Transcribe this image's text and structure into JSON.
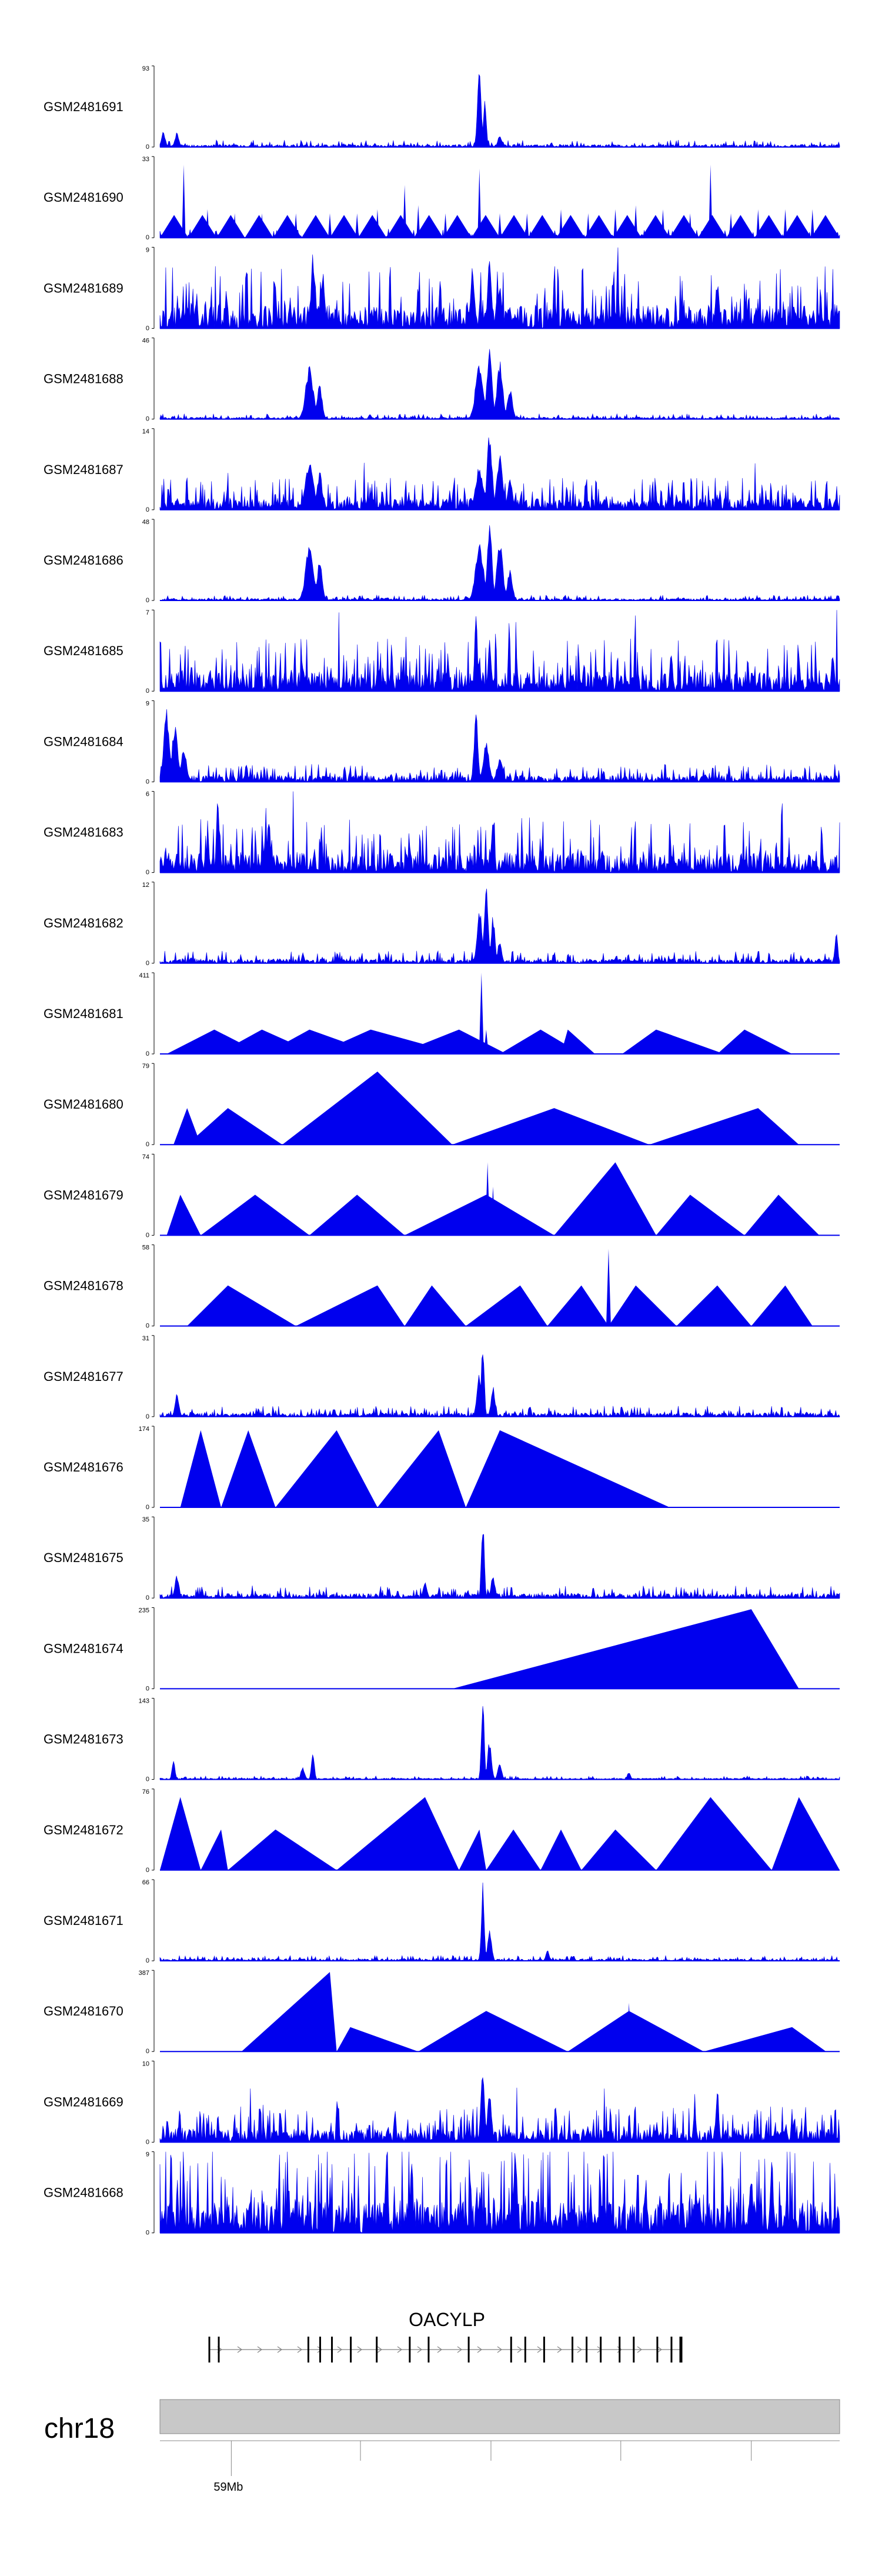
{
  "colors": {
    "signal": "#0000ee",
    "axis": "#000000",
    "ideogram_fill": "#c8c8c8",
    "ideogram_stroke": "#888888",
    "gene": "#000000",
    "intron_arrow": "#808080"
  },
  "chart_data": {
    "type": "area",
    "title": "",
    "xlabel": "",
    "ylabel": "",
    "chromosome": "chr18",
    "gene": {
      "name": "OACYLP",
      "strand": "+",
      "exons_rel": [
        0.0,
        0.02,
        0.21,
        0.235,
        0.26,
        0.3,
        0.355,
        0.425,
        0.465,
        0.55,
        0.64,
        0.67,
        0.71,
        0.77,
        0.8,
        0.83,
        0.87,
        0.9,
        0.95,
        0.98,
        1.0
      ]
    },
    "axis_ticks": [
      {
        "rel": 0.105,
        "label": "59Mb"
      },
      {
        "rel": 0.295,
        "label": ""
      },
      {
        "rel": 0.487,
        "label": ""
      },
      {
        "rel": 0.678,
        "label": ""
      },
      {
        "rel": 0.87,
        "label": ""
      }
    ],
    "tracks": [
      {
        "name": "GSM2481691",
        "ymax": 93,
        "ymin": 0,
        "style": "peaks",
        "noise": 0.04,
        "seed": 11,
        "peaks": [
          [
            0.005,
            0.2,
            0.004
          ],
          [
            0.025,
            0.18,
            0.004
          ],
          [
            0.47,
            1.0,
            0.004
          ],
          [
            0.478,
            0.6,
            0.003
          ],
          [
            0.5,
            0.15,
            0.004
          ]
        ]
      },
      {
        "name": "GSM2481690",
        "ymax": 33,
        "ymin": 0,
        "style": "mixed",
        "seed": 12,
        "spikes": [
          [
            0.035,
            0.9
          ],
          [
            0.07,
            0.35
          ],
          [
            0.11,
            0.3
          ],
          [
            0.15,
            0.3
          ],
          [
            0.2,
            0.3
          ],
          [
            0.25,
            0.3
          ],
          [
            0.29,
            0.3
          ],
          [
            0.32,
            0.35
          ],
          [
            0.36,
            0.65
          ],
          [
            0.38,
            0.4
          ],
          [
            0.42,
            0.3
          ],
          [
            0.47,
            0.85
          ],
          [
            0.5,
            0.3
          ],
          [
            0.54,
            0.3
          ],
          [
            0.59,
            0.35
          ],
          [
            0.63,
            0.3
          ],
          [
            0.67,
            0.35
          ],
          [
            0.7,
            0.4
          ],
          [
            0.74,
            0.35
          ],
          [
            0.78,
            0.3
          ],
          [
            0.81,
            0.9
          ],
          [
            0.84,
            0.3
          ],
          [
            0.88,
            0.35
          ],
          [
            0.92,
            0.35
          ],
          [
            0.96,
            0.35
          ]
        ]
      },
      {
        "name": "GSM2481689",
        "ymax": 9,
        "ymin": 0,
        "style": "dense",
        "noise": 0.35,
        "seed": 13,
        "peaks": [
          [
            0.225,
            1.0,
            0.003
          ],
          [
            0.24,
            0.7,
            0.004
          ],
          [
            0.46,
            0.8,
            0.004
          ],
          [
            0.485,
            1.0,
            0.004
          ],
          [
            0.5,
            0.6,
            0.004
          ],
          [
            0.82,
            0.6,
            0.004
          ]
        ]
      },
      {
        "name": "GSM2481688",
        "ymax": 46,
        "ymin": 0,
        "style": "peaks",
        "noise": 0.03,
        "seed": 14,
        "peaks": [
          [
            0.22,
            0.65,
            0.008
          ],
          [
            0.235,
            0.45,
            0.005
          ],
          [
            0.47,
            0.7,
            0.008
          ],
          [
            0.485,
            1.0,
            0.005
          ],
          [
            0.5,
            0.75,
            0.006
          ],
          [
            0.515,
            0.4,
            0.005
          ]
        ]
      },
      {
        "name": "GSM2481687",
        "ymax": 14,
        "ymin": 0,
        "style": "dense",
        "noise": 0.18,
        "seed": 15,
        "peaks": [
          [
            0.22,
            0.65,
            0.008
          ],
          [
            0.235,
            0.5,
            0.005
          ],
          [
            0.47,
            0.55,
            0.008
          ],
          [
            0.485,
            1.0,
            0.005
          ],
          [
            0.5,
            0.7,
            0.006
          ],
          [
            0.515,
            0.4,
            0.005
          ]
        ]
      },
      {
        "name": "GSM2481686",
        "ymax": 48,
        "ymin": 0,
        "style": "peaks",
        "noise": 0.03,
        "seed": 16,
        "peaks": [
          [
            0.22,
            0.7,
            0.008
          ],
          [
            0.235,
            0.5,
            0.005
          ],
          [
            0.47,
            0.75,
            0.008
          ],
          [
            0.485,
            1.0,
            0.005
          ],
          [
            0.5,
            0.8,
            0.006
          ],
          [
            0.515,
            0.4,
            0.005
          ]
        ]
      },
      {
        "name": "GSM2481685",
        "ymax": 7,
        "ymin": 0,
        "style": "dense",
        "noise": 0.3,
        "seed": 17,
        "peaks": [
          [
            0.465,
            1.0,
            0.003
          ],
          [
            0.485,
            0.75,
            0.003
          ],
          [
            0.99,
            0.55,
            0.003
          ]
        ]
      },
      {
        "name": "GSM2481684",
        "ymax": 9,
        "ymin": 0,
        "style": "dense",
        "noise": 0.1,
        "seed": 18,
        "peaks": [
          [
            0.01,
            0.9,
            0.006
          ],
          [
            0.022,
            0.7,
            0.006
          ],
          [
            0.035,
            0.4,
            0.006
          ],
          [
            0.465,
            0.9,
            0.004
          ],
          [
            0.48,
            0.5,
            0.006
          ],
          [
            0.5,
            0.3,
            0.006
          ]
        ]
      },
      {
        "name": "GSM2481683",
        "ymax": 6,
        "ymin": 0,
        "style": "dense",
        "noise": 0.3,
        "seed": 19,
        "peaks": [
          [
            0.085,
            0.95,
            0.003
          ],
          [
            0.16,
            0.8,
            0.003
          ],
          [
            0.49,
            0.8,
            0.003
          ]
        ]
      },
      {
        "name": "GSM2481682",
        "ymax": 12,
        "ymin": 0,
        "style": "peaks",
        "noise": 0.07,
        "seed": 20,
        "peaks": [
          [
            0.47,
            0.7,
            0.005
          ],
          [
            0.48,
            1.0,
            0.004
          ],
          [
            0.49,
            0.6,
            0.004
          ],
          [
            0.5,
            0.3,
            0.004
          ],
          [
            0.995,
            0.4,
            0.003
          ]
        ]
      },
      {
        "name": "GSM2481681",
        "ymax": 411,
        "ymin": 0,
        "style": "tri",
        "seed": 21,
        "tri": [
          [
            0.01,
            0.08,
            0.15
          ],
          [
            0.085,
            0.15,
            0.23
          ],
          [
            0.155,
            0.22,
            0.32
          ],
          [
            0.23,
            0.31,
            0.44
          ],
          [
            0.35,
            0.44,
            0.51
          ],
          [
            0.5,
            0.56,
            0.62
          ],
          [
            0.59,
            0.6,
            0.64
          ],
          [
            0.68,
            0.73,
            0.83
          ],
          [
            0.82,
            0.86,
            0.93
          ]
        ],
        "peaks": [
          [
            0.473,
            1.0,
            0.003
          ],
          [
            0.48,
            0.3,
            0.004
          ]
        ]
      },
      {
        "name": "GSM2481680",
        "ymax": 79,
        "ymin": 0,
        "style": "tri",
        "seed": 22,
        "tri": [
          [
            0.02,
            0.04,
            0.06
          ],
          [
            0.04,
            0.1,
            0.18
          ],
          [
            0.18,
            0.32,
            0.43
          ],
          [
            0.18,
            0.32,
            0.43
          ],
          [
            0.43,
            0.58,
            0.72
          ],
          [
            0.72,
            0.88,
            0.94
          ]
        ],
        "tri_h": [
          0.45,
          0.45,
          0.45,
          0.9,
          0.45,
          0.45
        ]
      },
      {
        "name": "GSM2481679",
        "ymax": 74,
        "ymin": 0,
        "style": "tri",
        "seed": 23,
        "tri": [
          [
            0.01,
            0.03,
            0.06
          ],
          [
            0.06,
            0.14,
            0.22
          ],
          [
            0.22,
            0.29,
            0.36
          ],
          [
            0.36,
            0.48,
            0.58
          ],
          [
            0.58,
            0.67,
            0.73
          ],
          [
            0.73,
            0.78,
            0.86
          ],
          [
            0.86,
            0.91,
            0.97
          ]
        ],
        "tri_h": [
          0.5,
          0.5,
          0.5,
          0.5,
          0.9,
          0.5,
          0.5
        ],
        "peaks": [
          [
            0.482,
            0.9,
            0.003
          ],
          [
            0.49,
            0.6,
            0.003
          ]
        ]
      },
      {
        "name": "GSM2481678",
        "ymax": 58,
        "ymin": 0,
        "style": "tri",
        "seed": 24,
        "tri": [
          [
            0.04,
            0.1,
            0.2
          ],
          [
            0.2,
            0.32,
            0.36
          ],
          [
            0.36,
            0.4,
            0.45
          ],
          [
            0.45,
            0.53,
            0.57
          ],
          [
            0.57,
            0.62,
            0.66
          ],
          [
            0.66,
            0.7,
            0.76
          ],
          [
            0.76,
            0.82,
            0.87
          ],
          [
            0.87,
            0.92,
            0.96
          ]
        ],
        "tri_h": [
          0.5,
          0.5,
          0.5,
          0.5,
          0.5,
          0.5,
          0.5,
          0.5
        ],
        "peaks": [
          [
            0.66,
            0.95,
            0.003
          ]
        ]
      },
      {
        "name": "GSM2481677",
        "ymax": 31,
        "ymin": 0,
        "style": "peaks",
        "noise": 0.06,
        "seed": 25,
        "peaks": [
          [
            0.025,
            0.3,
            0.004
          ],
          [
            0.47,
            0.55,
            0.005
          ],
          [
            0.475,
            1.0,
            0.003
          ],
          [
            0.49,
            0.4,
            0.004
          ]
        ]
      },
      {
        "name": "GSM2481676",
        "ymax": 174,
        "ymin": 0,
        "style": "tri",
        "seed": 26,
        "tri": [
          [
            0.03,
            0.06,
            0.09
          ],
          [
            0.09,
            0.13,
            0.17
          ],
          [
            0.17,
            0.26,
            0.32
          ],
          [
            0.32,
            0.41,
            0.45
          ],
          [
            0.45,
            0.5,
            0.75
          ]
        ],
        "tri_h": [
          0.95,
          0.95,
          0.95,
          0.95,
          0.95
        ]
      },
      {
        "name": "GSM2481675",
        "ymax": 35,
        "ymin": 0,
        "style": "peaks",
        "noise": 0.07,
        "seed": 27,
        "peaks": [
          [
            0.025,
            0.3,
            0.004
          ],
          [
            0.39,
            0.2,
            0.004
          ],
          [
            0.475,
            1.0,
            0.003
          ],
          [
            0.49,
            0.3,
            0.004
          ]
        ]
      },
      {
        "name": "GSM2481674",
        "ymax": 235,
        "ymin": 0,
        "style": "tri",
        "seed": 28,
        "tri": [
          [
            0.43,
            0.87,
            0.94
          ]
        ],
        "tri_h": [
          0.98
        ]
      },
      {
        "name": "GSM2481673",
        "ymax": 143,
        "ymin": 0,
        "style": "peaks",
        "noise": 0.02,
        "seed": 29,
        "peaks": [
          [
            0.02,
            0.25,
            0.003
          ],
          [
            0.21,
            0.15,
            0.004
          ],
          [
            0.225,
            0.35,
            0.003
          ],
          [
            0.475,
            1.0,
            0.003
          ],
          [
            0.485,
            0.5,
            0.004
          ],
          [
            0.5,
            0.2,
            0.004
          ],
          [
            0.69,
            0.1,
            0.003
          ]
        ]
      },
      {
        "name": "GSM2481672",
        "ymax": 76,
        "ymin": 0,
        "style": "tri",
        "seed": 30,
        "tri": [
          [
            0.0,
            0.03,
            0.06
          ],
          [
            0.06,
            0.09,
            0.1
          ],
          [
            0.1,
            0.17,
            0.26
          ],
          [
            0.26,
            0.39,
            0.44
          ],
          [
            0.44,
            0.47,
            0.48
          ],
          [
            0.48,
            0.52,
            0.56
          ],
          [
            0.56,
            0.59,
            0.62
          ],
          [
            0.62,
            0.67,
            0.73
          ],
          [
            0.73,
            0.81,
            0.9
          ],
          [
            0.9,
            0.94,
            1.0
          ]
        ],
        "tri_h": [
          0.9,
          0.5,
          0.5,
          0.9,
          0.5,
          0.5,
          0.5,
          0.5,
          0.9,
          0.9
        ]
      },
      {
        "name": "GSM2481671",
        "ymax": 66,
        "ymin": 0,
        "style": "peaks",
        "noise": 0.03,
        "seed": 31,
        "peaks": [
          [
            0.475,
            1.0,
            0.003
          ],
          [
            0.485,
            0.4,
            0.004
          ],
          [
            0.57,
            0.15,
            0.003
          ]
        ]
      },
      {
        "name": "GSM2481670",
        "ymax": 387,
        "ymin": 0,
        "style": "tri",
        "seed": 32,
        "tri": [
          [
            0.12,
            0.25,
            0.26
          ],
          [
            0.26,
            0.28,
            0.38
          ],
          [
            0.38,
            0.48,
            0.6
          ],
          [
            0.6,
            0.69,
            0.8
          ],
          [
            0.8,
            0.93,
            0.98
          ]
        ],
        "tri_h": [
          0.98,
          0.3,
          0.5,
          0.5,
          0.3
        ],
        "peaks": [
          [
            0.69,
            0.6,
            0.003
          ]
        ]
      },
      {
        "name": "GSM2481669",
        "ymax": 10,
        "ymin": 0,
        "style": "dense",
        "noise": 0.2,
        "seed": 33,
        "peaks": [
          [
            0.475,
            0.9,
            0.004
          ],
          [
            0.485,
            0.7,
            0.004
          ],
          [
            0.82,
            0.7,
            0.003
          ]
        ]
      },
      {
        "name": "GSM2481668",
        "ymax": 9,
        "ymin": 0,
        "style": "dense",
        "noise": 0.5,
        "seed": 34,
        "peaks": [
          [
            0.37,
            0.9,
            0.003
          ],
          [
            0.9,
            0.95,
            0.003
          ]
        ]
      }
    ]
  }
}
